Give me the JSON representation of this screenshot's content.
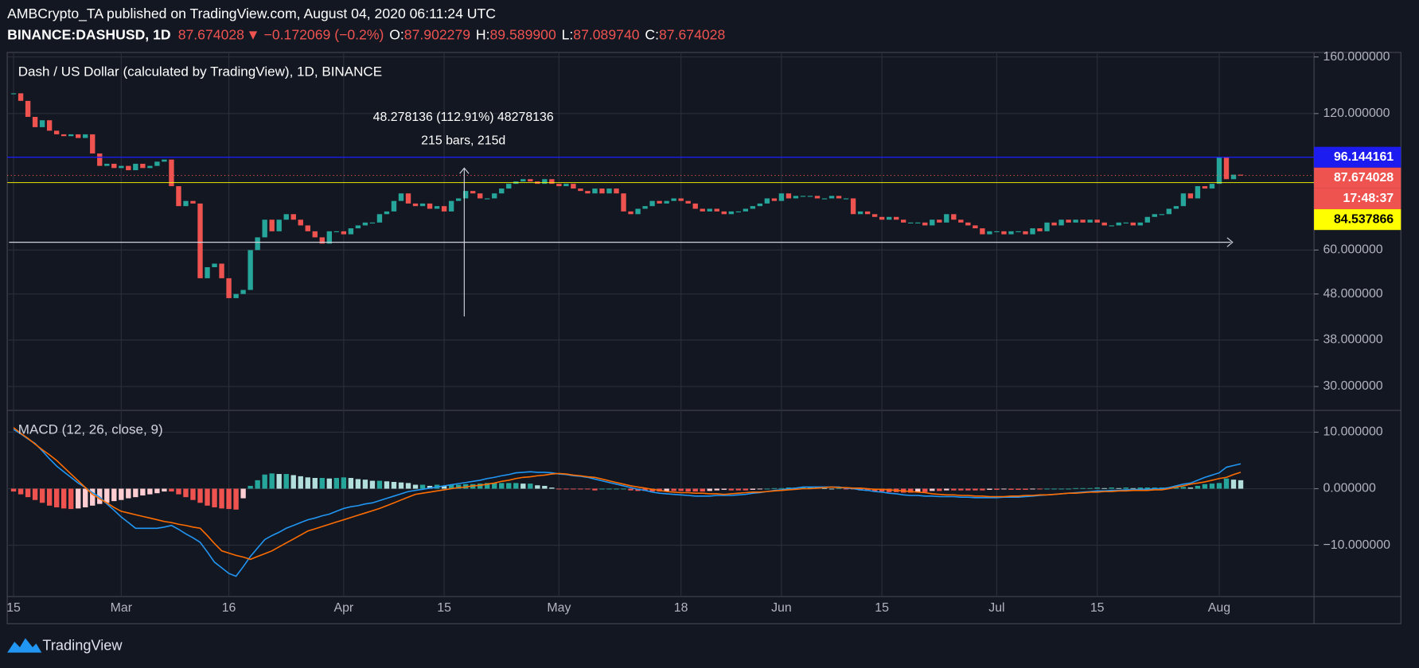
{
  "header": {
    "published": "AMBCrypto_TA published on TradingView.com, August 04, 2020 06:11:24 UTC",
    "symbol": "BINANCE:DASHUSD, 1D",
    "last": "87.674028",
    "change": "▼ −0.172069 (−0.2%)",
    "ohlc": [
      {
        "key": "O:",
        "value": "87.902279"
      },
      {
        "key": "H:",
        "value": "89.589900"
      },
      {
        "key": "L:",
        "value": "87.089740"
      },
      {
        "key": "C:",
        "value": "87.674028"
      }
    ]
  },
  "footer": {
    "brand": "TradingView"
  },
  "chart_data": [
    {
      "type": "candlestick",
      "title": "Dash / US Dollar (calculated by TradingView), 1D, BINANCE",
      "scale": "log",
      "grid": true,
      "up_color": "#26a69a",
      "down_color": "#ef5350",
      "categories": [
        "15",
        null,
        null,
        null,
        null,
        null,
        null,
        null,
        null,
        null,
        null,
        null,
        null,
        null,
        null,
        "Mar",
        null,
        null,
        null,
        null,
        null,
        null,
        null,
        null,
        null,
        null,
        null,
        null,
        null,
        null,
        "16",
        null,
        null,
        null,
        null,
        null,
        null,
        null,
        null,
        null,
        null,
        null,
        null,
        null,
        null,
        null,
        "Apr",
        null,
        null,
        null,
        null,
        null,
        null,
        null,
        null,
        null,
        null,
        null,
        null,
        null,
        "15",
        null,
        null,
        null,
        null,
        null,
        null,
        null,
        null,
        null,
        null,
        null,
        null,
        null,
        null,
        null,
        "May",
        null,
        null,
        null,
        null,
        null,
        null,
        null,
        null,
        null,
        null,
        null,
        null,
        null,
        null,
        null,
        null,
        "18",
        null,
        null,
        null,
        null,
        null,
        null,
        null,
        null,
        null,
        null,
        null,
        null,
        null,
        "Jun",
        null,
        null,
        null,
        null,
        null,
        null,
        null,
        null,
        null,
        null,
        null,
        null,
        null,
        "15",
        null,
        null,
        null,
        null,
        null,
        null,
        null,
        null,
        null,
        null,
        null,
        null,
        null,
        null,
        null,
        "Jul",
        null,
        null,
        null,
        null,
        null,
        null,
        null,
        null,
        null,
        null,
        null,
        null,
        null,
        "15",
        null,
        null,
        null,
        null,
        null,
        null,
        null,
        null,
        null,
        null,
        null,
        null,
        null,
        null,
        null,
        null,
        "Aug",
        null,
        null,
        null
      ],
      "values": [
        133,
        128,
        118,
        112,
        116,
        110,
        108,
        107,
        108,
        106,
        108,
        98,
        92,
        93,
        91,
        92,
        90,
        93,
        91,
        92,
        94,
        95,
        83,
        75,
        77,
        76,
        52,
        55,
        56,
        52,
        47,
        48,
        49,
        60,
        64,
        70,
        66,
        70,
        72,
        70,
        68,
        66,
        64,
        62,
        66,
        66,
        65,
        67,
        68,
        69,
        69,
        72,
        73,
        77,
        80,
        76,
        75,
        76,
        74,
        75,
        73,
        77,
        78,
        81,
        80,
        78,
        78,
        80,
        82,
        84,
        85,
        86,
        85,
        84,
        86,
        84,
        83,
        84,
        82,
        81,
        80,
        82,
        80,
        82,
        80,
        73,
        72,
        74,
        75,
        77,
        76,
        77,
        78,
        77,
        76,
        74,
        73,
        74,
        73,
        72,
        73,
        73,
        74,
        75,
        76,
        78,
        77,
        80,
        78,
        79,
        79,
        79,
        78,
        78,
        79,
        78,
        78,
        72,
        73,
        72,
        71,
        70,
        71,
        70,
        69,
        69,
        69,
        68,
        70,
        69,
        72,
        70,
        69,
        68,
        67,
        65,
        66,
        66,
        65,
        66,
        66,
        65,
        67,
        66,
        69,
        68,
        70,
        69,
        70,
        69,
        70,
        69,
        68,
        68,
        69,
        69,
        68,
        69,
        71,
        72,
        72,
        74,
        75,
        80,
        78,
        83,
        82,
        84,
        96,
        86,
        88,
        87.674028
      ],
      "ylim": [
        26.7,
        163.7
      ],
      "yticks": [
        {
          "value": 160,
          "label": "160.000000"
        },
        {
          "value": 120,
          "label": "120.000000"
        },
        {
          "value": 60,
          "label": "60.000000"
        },
        {
          "value": 48,
          "label": "48.000000"
        },
        {
          "value": 38,
          "label": "38.000000"
        },
        {
          "value": 30,
          "label": "30.000000"
        }
      ],
      "price_lines": [
        {
          "value": 96.144161,
          "color": "#1c1cf0",
          "label_text_color": "#ffffff"
        }
      ],
      "countdown": "17:48:37",
      "marker_lines": [
        {
          "value": 84.537866,
          "color": "#ffff00",
          "label_text_color": "#000000"
        }
      ],
      "measure": {
        "label": "48.278136 (112.91%) 48278136",
        "bars": "215 bars, 215d"
      }
    },
    {
      "type": "macd",
      "title": "MACD (12, 26, close, 9)",
      "grid": true,
      "ylim": [
        -19.1,
        13.7
      ],
      "yticks": [
        {
          "value": 10,
          "label": "10.000000"
        },
        {
          "value": 0,
          "label": "0.000000"
        },
        {
          "value": -10,
          "label": "−10.000000"
        }
      ],
      "positive_colors": [
        "#26a69a",
        "#b2dfdb"
      ],
      "negative_colors": [
        "#ef5350",
        "#ffcdd2"
      ],
      "series": [
        {
          "type": "bar",
          "values": [
            -0.5,
            -1.0,
            -1.5,
            -2.0,
            -2.5,
            -3.0,
            -3.3,
            -3.5,
            -3.6,
            -3.5,
            -3.3,
            -3.0,
            -2.7,
            -2.5,
            -2.2,
            -2.0,
            -1.7,
            -1.5,
            -1.2,
            -1.0,
            -0.8,
            -0.5,
            -0.5,
            -1.0,
            -1.5,
            -2.0,
            -2.5,
            -3.0,
            -3.3,
            -3.5,
            -3.6,
            -3.7,
            -1.7,
            0.5,
            1.5,
            2.5,
            2.7,
            2.6,
            2.6,
            2.4,
            2.2,
            2.0,
            1.9,
            1.9,
            1.8,
            1.9,
            2.0,
            1.9,
            1.7,
            1.6,
            1.4,
            1.4,
            1.3,
            1.2,
            1.1,
            1.0,
            0.7,
            0.7,
            0.5,
            0.7,
            0.5,
            0.7,
            0.7,
            0.8,
            0.8,
            0.9,
            1.0,
            1.0,
            1.0,
            1.0,
            1.0,
            0.9,
            0.9,
            0.6,
            0.5,
            0.2,
            -0.1,
            -0.1,
            -0.1,
            -0.1,
            -0.1,
            -0.3,
            0.0,
            0.0,
            0.0,
            0.0,
            -0.3,
            -0.4,
            -0.4,
            -0.5,
            -0.5,
            -0.4,
            -0.4,
            -0.4,
            -0.5,
            -0.5,
            -0.5,
            -0.4,
            -0.3,
            -0.2,
            -0.3,
            -0.3,
            -0.3,
            -0.2,
            -0.1,
            0.0,
            0.1,
            0.1,
            0.2,
            0.2,
            0.3,
            0.3,
            0.2,
            0.1,
            0.0,
            0.1,
            -0.1,
            -0.1,
            -0.3,
            -0.4,
            -0.5,
            -0.5,
            -0.6,
            -0.6,
            -0.7,
            -0.7,
            -0.6,
            -0.6,
            -0.4,
            -0.4,
            -0.3,
            -0.3,
            -0.3,
            -0.3,
            -0.3,
            -0.3,
            -0.2,
            -0.2,
            -0.1,
            -0.2,
            -0.2,
            -0.2,
            -0.1,
            -0.1,
            0.0,
            0.0,
            0.0,
            0.0,
            0.1,
            0.1,
            0.1,
            0.2,
            0.1,
            0.2,
            0.1,
            0.2,
            0.1,
            0.2,
            0.2,
            0.2,
            0.2,
            0.2,
            0.2,
            0.3,
            0.2,
            0.5,
            0.8,
            0.9,
            1.0,
            1.8,
            1.6,
            1.5
          ]
        },
        {
          "type": "line",
          "color": "#2196f3",
          "values": [
            10.5,
            9.7,
            8.8,
            8.0,
            6.7,
            5.3,
            4.0,
            3.0,
            2.0,
            1.0,
            0.2,
            -0.7,
            -1.5,
            -2.7,
            -3.8,
            -5.0,
            -6.0,
            -7.0,
            -7.0,
            -7.0,
            -7.0,
            -6.8,
            -6.5,
            -7.2,
            -8.0,
            -8.7,
            -9.5,
            -11.2,
            -13.0,
            -14.0,
            -15.0,
            -15.5,
            -13.8,
            -12.0,
            -10.5,
            -9.0,
            -8.3,
            -7.7,
            -7.0,
            -6.5,
            -6.0,
            -5.5,
            -5.2,
            -4.8,
            -4.5,
            -4.0,
            -3.5,
            -3.2,
            -3.0,
            -2.7,
            -2.5,
            -2.1,
            -1.7,
            -1.3,
            -0.9,
            -0.5,
            -0.3,
            -0.1,
            0.1,
            0.3,
            0.5,
            0.7,
            0.9,
            1.1,
            1.3,
            1.5,
            1.8,
            2.0,
            2.3,
            2.5,
            2.8,
            2.9,
            3.0,
            2.9,
            2.9,
            2.8,
            2.6,
            2.5,
            2.3,
            2.2,
            2.0,
            1.7,
            1.4,
            1.1,
            0.8,
            0.5,
            0.2,
            -0.1,
            -0.3,
            -0.6,
            -0.8,
            -0.9,
            -1.0,
            -1.1,
            -1.2,
            -1.3,
            -1.3,
            -1.3,
            -1.2,
            -1.2,
            -1.2,
            -1.1,
            -1.0,
            -0.8,
            -0.7,
            -0.5,
            -0.3,
            -0.2,
            0.0,
            0.1,
            0.3,
            0.3,
            0.3,
            0.3,
            0.3,
            0.3,
            0.1,
            0.0,
            -0.2,
            -0.3,
            -0.5,
            -0.6,
            -0.8,
            -0.9,
            -1.1,
            -1.2,
            -1.2,
            -1.3,
            -1.3,
            -1.4,
            -1.4,
            -1.4,
            -1.5,
            -1.5,
            -1.6,
            -1.6,
            -1.6,
            -1.6,
            -1.5,
            -1.5,
            -1.5,
            -1.4,
            -1.3,
            -1.2,
            -1.1,
            -1.0,
            -0.9,
            -0.8,
            -0.7,
            -0.6,
            -0.5,
            -0.4,
            -0.4,
            -0.3,
            -0.3,
            -0.2,
            -0.2,
            -0.1,
            -0.1,
            0.0,
            0.0,
            0.2,
            0.5,
            0.8,
            1.0,
            1.5,
            2.0,
            2.4,
            2.8,
            3.8,
            4.1,
            4.4
          ]
        },
        {
          "type": "line",
          "color": "#ff6d00",
          "values": [
            10.8,
            9.8,
            8.9,
            7.9,
            6.9,
            6.0,
            5.0,
            3.8,
            2.6,
            1.4,
            0.2,
            -1.0,
            -1.8,
            -2.5,
            -3.3,
            -4.0,
            -4.3,
            -4.6,
            -4.9,
            -5.2,
            -5.5,
            -5.8,
            -6.0,
            -6.3,
            -6.5,
            -6.8,
            -7.0,
            -8.3,
            -9.7,
            -11.0,
            -11.4,
            -11.8,
            -12.1,
            -12.5,
            -12.0,
            -11.5,
            -11.0,
            -10.3,
            -9.6,
            -8.9,
            -8.2,
            -7.5,
            -7.1,
            -6.7,
            -6.3,
            -5.9,
            -5.5,
            -5.1,
            -4.7,
            -4.3,
            -3.9,
            -3.5,
            -3.0,
            -2.5,
            -2.0,
            -1.5,
            -1.0,
            -0.8,
            -0.6,
            -0.4,
            -0.2,
            0.0,
            0.2,
            0.3,
            0.5,
            0.6,
            0.8,
            1.0,
            1.3,
            1.5,
            1.8,
            2.0,
            2.1,
            2.3,
            2.4,
            2.6,
            2.7,
            2.6,
            2.4,
            2.3,
            2.1,
            2.0,
            1.7,
            1.4,
            1.1,
            0.8,
            0.5,
            0.3,
            0.1,
            -0.1,
            -0.3,
            -0.5,
            -0.6,
            -0.7,
            -0.7,
            -0.8,
            -0.8,
            -0.9,
            -0.9,
            -1.0,
            -0.9,
            -0.8,
            -0.7,
            -0.6,
            -0.6,
            -0.5,
            -0.4,
            -0.3,
            -0.2,
            -0.1,
            0.0,
            0.0,
            0.1,
            0.2,
            0.3,
            0.2,
            0.2,
            0.1,
            0.1,
            0.0,
            -0.1,
            -0.1,
            -0.2,
            -0.3,
            -0.4,
            -0.5,
            -0.6,
            -0.7,
            -0.9,
            -1.0,
            -1.1,
            -1.1,
            -1.2,
            -1.2,
            -1.3,
            -1.3,
            -1.4,
            -1.4,
            -1.4,
            -1.3,
            -1.3,
            -1.2,
            -1.2,
            -1.1,
            -1.1,
            -1.0,
            -0.9,
            -0.8,
            -0.8,
            -0.7,
            -0.6,
            -0.6,
            -0.5,
            -0.5,
            -0.4,
            -0.4,
            -0.3,
            -0.3,
            -0.3,
            -0.2,
            -0.2,
            0.0,
            0.3,
            0.5,
            0.8,
            1.0,
            1.2,
            1.5,
            1.8,
            2.0,
            2.5,
            2.9
          ]
        }
      ]
    }
  ]
}
